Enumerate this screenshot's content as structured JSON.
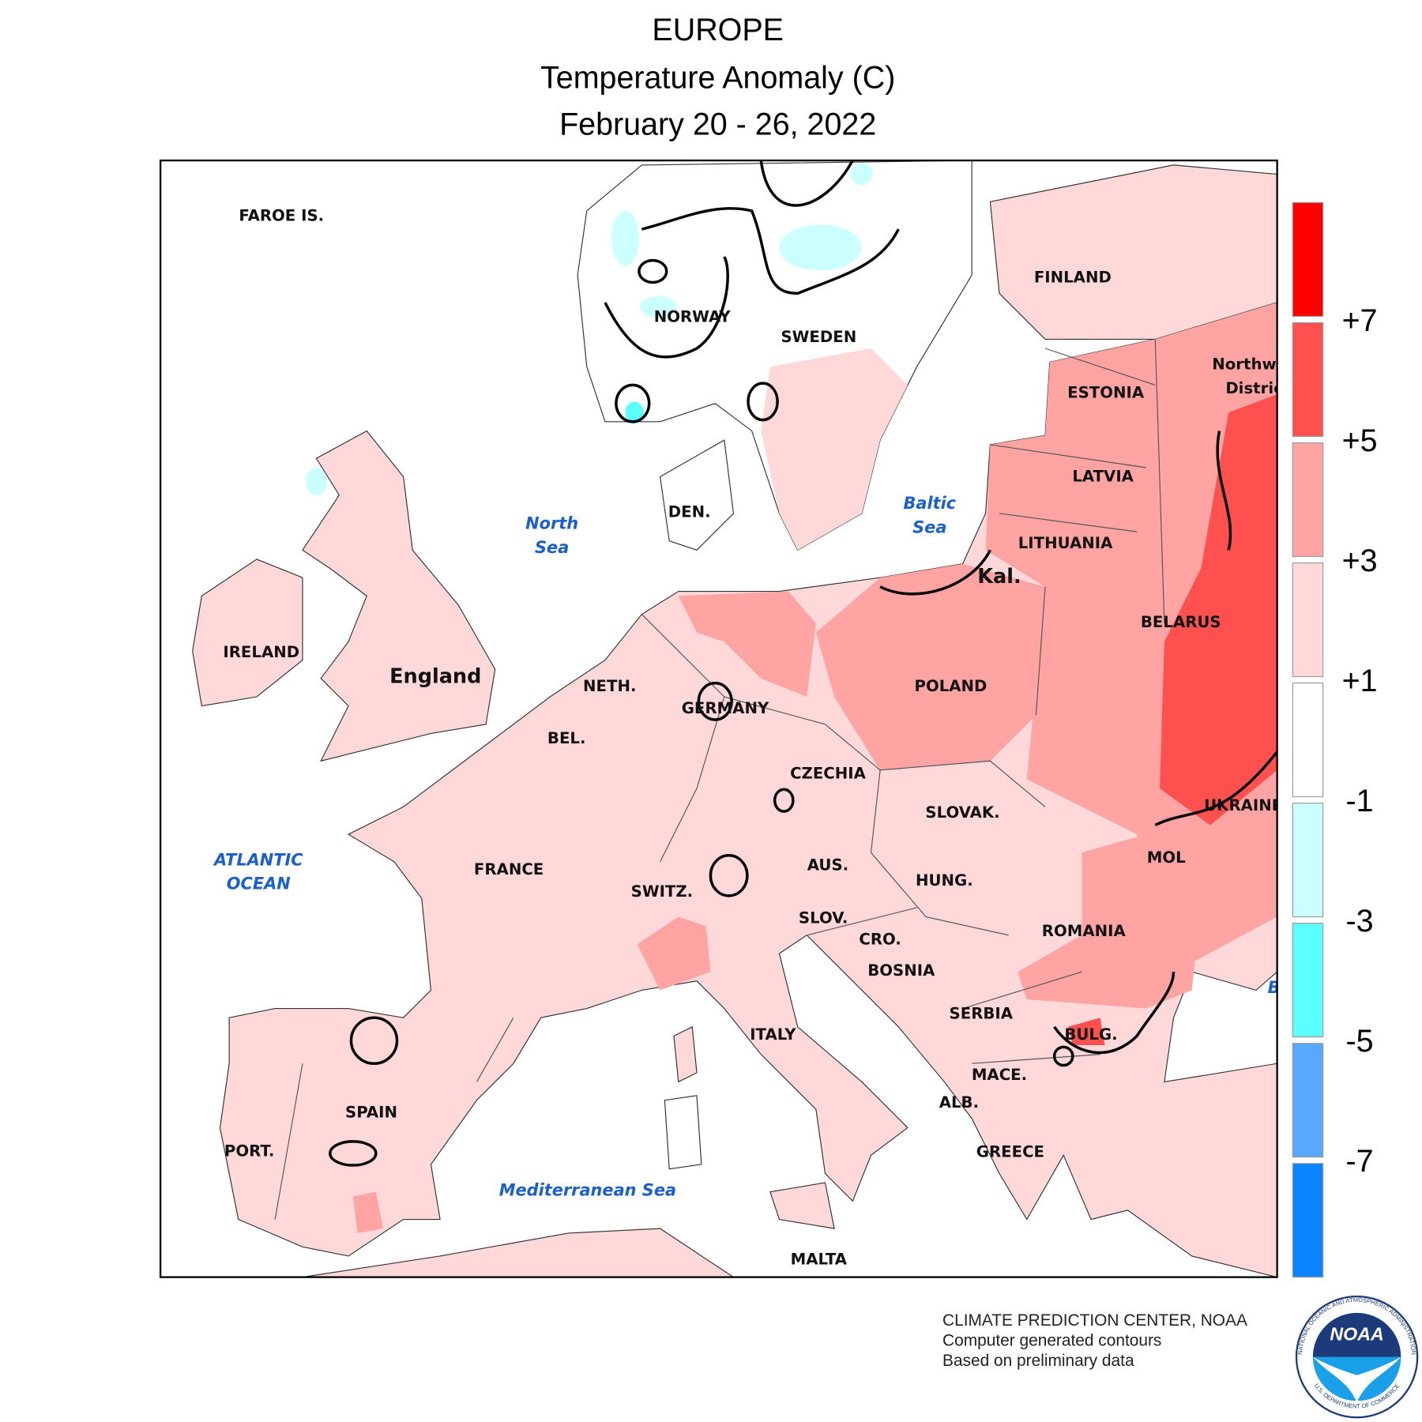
{
  "header": {
    "title": "EUROPE",
    "subtitle": "Temperature Anomaly (C)",
    "period": "February 20 - 26, 2022"
  },
  "map": {
    "countries": [
      "FAROE IS.",
      "NORWAY",
      "SWEDEN",
      "FINLAND",
      "ESTONIA",
      "LATVIA",
      "LITHUANIA",
      "Kal.",
      "BELARUS",
      "POLAND",
      "DEN.",
      "NETH.",
      "GERMANY",
      "BEL.",
      "CZECHIA",
      "SLOVAK.",
      "England",
      "IRELAND",
      "AUS.",
      "HUNG.",
      "MOL",
      "ROMANIA",
      "FRANCE",
      "SWITZ.",
      "SLOV.",
      "CRO.",
      "BOSNIA",
      "SERBIA",
      "BULG.",
      "ITALY",
      "MACE.",
      "ALB.",
      "SPAIN",
      "PORT.",
      "GREECE",
      "MALTA",
      "UKRAINE",
      "Northwest",
      "District"
    ],
    "seas": [
      [
        "North",
        "Sea"
      ],
      [
        "Baltic",
        "Sea"
      ],
      [
        "ATLANTIC",
        "OCEAN"
      ],
      [
        "Mediterranean Sea"
      ],
      [
        "Black"
      ]
    ]
  },
  "legend": {
    "labels": [
      "+7",
      "+5",
      "+3",
      "+1",
      "-1",
      "-3",
      "-5",
      "-7"
    ],
    "colors": [
      "#ff0000",
      "#ff5050",
      "#ffa3a3",
      "#ffd9d9",
      "#ffffff",
      "#ccffff",
      "#5cffff",
      "#57a8ff",
      "#0a84ff"
    ]
  },
  "footer": {
    "lines": [
      "CLIMATE PREDICTION CENTER, NOAA",
      "Computer generated contours",
      "Based on preliminary data"
    ]
  },
  "logo": {
    "text": "NOAA",
    "ring_top": "NATIONAL OCEANIC AND ATMOSPHERIC ADMINISTRATION",
    "ring_bottom": "U.S. DEPARTMENT OF COMMERCE"
  }
}
